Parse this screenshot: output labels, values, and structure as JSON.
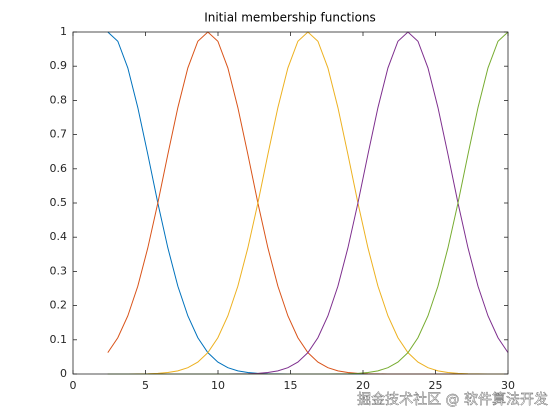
{
  "chart_data": {
    "type": "line",
    "title": "Initial membership functions",
    "x": [
      2.4,
      3.09,
      3.78,
      4.47,
      5.16,
      5.85,
      6.54,
      7.23,
      7.92,
      8.61,
      9.3,
      9.99,
      10.68,
      11.37,
      12.06,
      12.75,
      13.44,
      14.13,
      14.82,
      15.51,
      16.2,
      16.89,
      17.58,
      18.27,
      18.96,
      19.65,
      20.34,
      21.03,
      21.72,
      22.41,
      23.1,
      23.79,
      24.48,
      25.17,
      25.86,
      26.55,
      27.24,
      27.93,
      28.62,
      29.31,
      30
    ],
    "series": [
      {
        "color": "#0072BD",
        "values": [
          1,
          0.973,
          0.895,
          0.779,
          0.642,
          0.5,
          0.369,
          0.257,
          0.17,
          0.106,
          0.0625,
          0.0349,
          0.0184,
          0.0092,
          0.0044,
          0.002,
          0.0008,
          0.0003,
          0,
          0,
          0,
          0,
          0,
          0,
          0,
          0,
          0,
          0,
          0,
          0,
          0,
          0,
          0,
          0,
          0,
          0,
          0,
          0,
          0,
          0,
          0
        ]
      },
      {
        "color": "#D95319",
        "values": [
          0.0625,
          0.106,
          0.17,
          0.257,
          0.369,
          0.5,
          0.642,
          0.779,
          0.895,
          0.973,
          1,
          0.973,
          0.895,
          0.779,
          0.642,
          0.5,
          0.369,
          0.257,
          0.17,
          0.106,
          0.0625,
          0.0349,
          0.0184,
          0.0092,
          0.0044,
          0.002,
          0.0008,
          0.0003,
          0,
          0,
          0,
          0,
          0,
          0,
          0,
          0,
          0,
          0,
          0,
          0,
          0
        ]
      },
      {
        "color": "#EDB120",
        "values": [
          0,
          0,
          0,
          0.0003,
          0.0008,
          0.002,
          0.0044,
          0.0092,
          0.0184,
          0.0349,
          0.0625,
          0.106,
          0.17,
          0.257,
          0.369,
          0.5,
          0.642,
          0.779,
          0.895,
          0.973,
          1,
          0.973,
          0.895,
          0.779,
          0.642,
          0.5,
          0.369,
          0.257,
          0.17,
          0.106,
          0.0625,
          0.0349,
          0.0184,
          0.0092,
          0.0044,
          0.002,
          0.0008,
          0.0003,
          0,
          0,
          0
        ]
      },
      {
        "color": "#7E2F8E",
        "values": [
          0,
          0,
          0,
          0,
          0,
          0,
          0,
          0,
          0,
          0,
          0,
          0,
          0,
          0.0003,
          0.0008,
          0.002,
          0.0044,
          0.0092,
          0.0184,
          0.0349,
          0.0625,
          0.106,
          0.17,
          0.257,
          0.369,
          0.5,
          0.642,
          0.779,
          0.895,
          0.973,
          1,
          0.973,
          0.895,
          0.779,
          0.642,
          0.5,
          0.369,
          0.257,
          0.17,
          0.106,
          0.0625
        ]
      },
      {
        "color": "#77AC30",
        "values": [
          0,
          0,
          0,
          0,
          0,
          0,
          0,
          0,
          0,
          0,
          0,
          0,
          0,
          0,
          0,
          0,
          0,
          0,
          0,
          0,
          0,
          0,
          0,
          0.0003,
          0.0008,
          0.002,
          0.0044,
          0.0092,
          0.0184,
          0.0349,
          0.0625,
          0.106,
          0.17,
          0.257,
          0.369,
          0.5,
          0.642,
          0.779,
          0.895,
          0.973,
          1
        ]
      }
    ],
    "xlim": [
      0,
      30
    ],
    "xticks": [
      0,
      5,
      10,
      15,
      20,
      25,
      30
    ],
    "ylim": [
      0,
      1
    ],
    "yticks": [
      0,
      0.1,
      0.2,
      0.3,
      0.4,
      0.5,
      0.6,
      0.7,
      0.8,
      0.9,
      1
    ],
    "watermark": "掘金技术社区 @ 软件算法开发"
  }
}
